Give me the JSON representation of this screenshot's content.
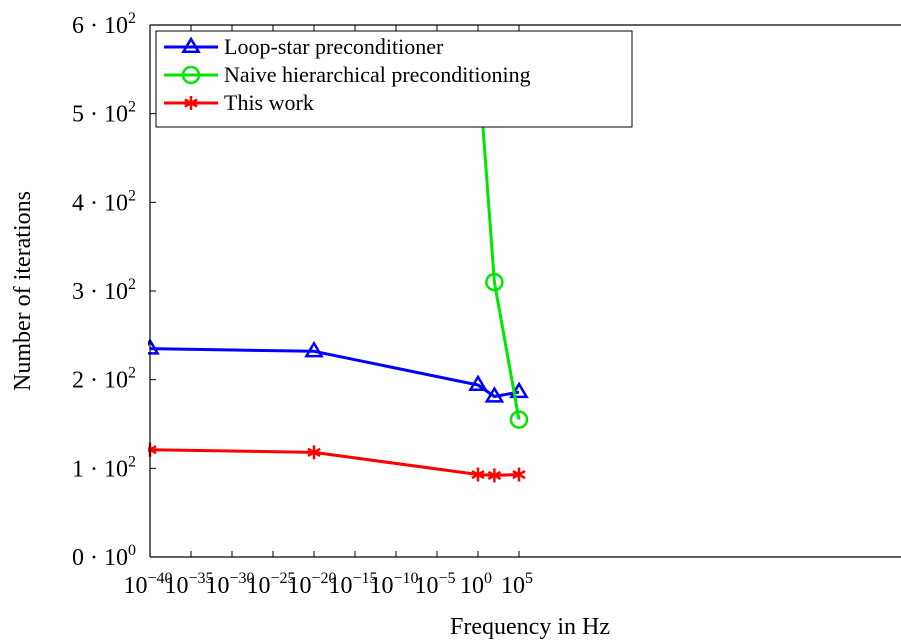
{
  "chart_data": {
    "type": "line",
    "title": "",
    "xlabel": "Frequency in Hz",
    "ylabel": "Number of iterations",
    "x_scale": "log",
    "x_tick_exponents": [
      -40,
      -35,
      -30,
      -25,
      -20,
      -15,
      -10,
      -5,
      0,
      5
    ],
    "x_tick_base": "10",
    "y_ticks": [
      {
        "value": 0,
        "mantissa": "0",
        "exponent": "0"
      },
      {
        "value": 100,
        "mantissa": "1",
        "exponent": "2"
      },
      {
        "value": 200,
        "mantissa": "2",
        "exponent": "2"
      },
      {
        "value": 300,
        "mantissa": "3",
        "exponent": "2"
      },
      {
        "value": 400,
        "mantissa": "4",
        "exponent": "2"
      },
      {
        "value": 500,
        "mantissa": "5",
        "exponent": "2"
      },
      {
        "value": 600,
        "mantissa": "6",
        "exponent": "2"
      }
    ],
    "xlim": [
      "1e-40",
      "1e5"
    ],
    "ylim": [
      0,
      600
    ],
    "legend_position": "top-left",
    "series": [
      {
        "name": "Loop-star preconditioner",
        "color": "#0000ff",
        "marker": "triangle",
        "x": [
          "1e-40",
          "1e-20",
          "1e0",
          "1e2",
          "1e5"
        ],
        "y": [
          235,
          232,
          194,
          181,
          186
        ]
      },
      {
        "name": "Naive hierarchical preconditioning",
        "color": "#00e600",
        "marker": "circle",
        "x": [
          "1e0",
          "1e2",
          "1e5"
        ],
        "y": [
          560,
          310,
          155
        ]
      },
      {
        "name": "This work",
        "color": "#ff0000",
        "marker": "asterisk",
        "x": [
          "1e-40",
          "1e-20",
          "1e0",
          "1e2",
          "1e5"
        ],
        "y": [
          121,
          118,
          93,
          92,
          93
        ]
      }
    ]
  }
}
